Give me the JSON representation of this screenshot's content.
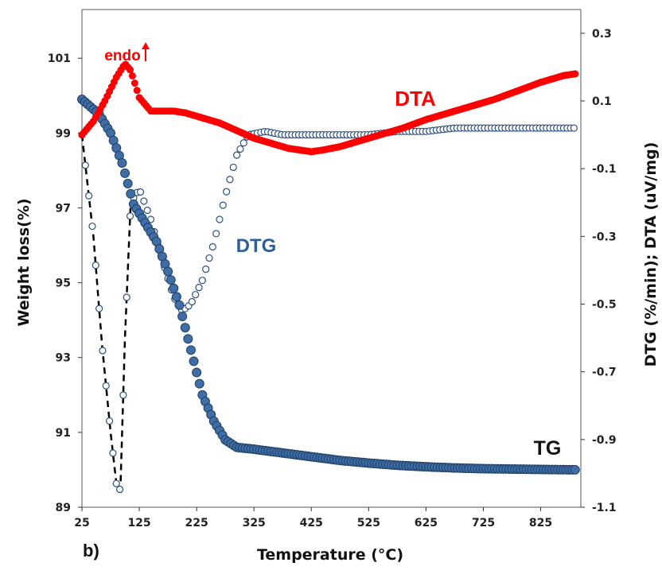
{
  "panel_label": "b)",
  "colors": {
    "dta": "#ff0000",
    "tg_fill": "#3f6ea6",
    "tg_edge": "#1f3f66",
    "dtg_edge": "#2a4f80",
    "dtg_dash": "#000000",
    "axis": "#333333"
  },
  "chart_data": {
    "type": "scatter",
    "title": "",
    "xlabel": "Temperature (°C)",
    "ylabel_left": "Weight loss(%)",
    "ylabel_right": "DTG (%/min); DTA (uV/mg)",
    "xlim": [
      25,
      895
    ],
    "ylim_left": [
      89,
      102.3
    ],
    "ylim_right": [
      -1.1,
      0.37
    ],
    "x_ticks": [
      "25",
      "125",
      "225",
      "325",
      "425",
      "525",
      "625",
      "725",
      "825"
    ],
    "y_left_ticks": [
      "89",
      "91",
      "93",
      "95",
      "97",
      "99",
      "101"
    ],
    "y_right_ticks": [
      "-1.1",
      "-0.9",
      "-0.7",
      "-0.5",
      "-0.3",
      "-0.1",
      "0.1",
      "0.3"
    ],
    "grid": false,
    "annotations": [
      "endo"
    ],
    "series": [
      {
        "name": "TG",
        "axis": "left",
        "marker": "filled-circle",
        "x": [
          25,
          55,
          75,
          95,
          115,
          135,
          155,
          175,
          195,
          215,
          235,
          255,
          275,
          295,
          325,
          375,
          425,
          475,
          525,
          575,
          625,
          675,
          725,
          775,
          825,
          885
        ],
        "y": [
          99.9,
          99.5,
          99.0,
          98.2,
          97.1,
          96.6,
          96.1,
          95.3,
          94.4,
          93.2,
          92.0,
          91.3,
          90.8,
          90.6,
          90.55,
          90.45,
          90.35,
          90.25,
          90.18,
          90.12,
          90.08,
          90.05,
          90.03,
          90.02,
          90.01,
          90.0
        ]
      },
      {
        "name": "DTG",
        "axis": "right",
        "marker": "open-circle",
        "x": [
          25,
          45,
          60,
          75,
          85,
          92,
          100,
          110,
          125,
          145,
          165,
          185,
          200,
          215,
          235,
          255,
          275,
          295,
          315,
          345,
          375,
          425,
          475,
          525,
          575,
          625,
          675,
          725,
          775,
          825,
          885
        ],
        "y": [
          0.0,
          -0.3,
          -0.62,
          -0.88,
          -1.03,
          -1.05,
          -0.6,
          -0.2,
          -0.16,
          -0.25,
          -0.37,
          -0.48,
          -0.52,
          -0.5,
          -0.43,
          -0.32,
          -0.18,
          -0.06,
          0.0,
          0.01,
          0.0,
          0.0,
          0.0,
          0.0,
          0.01,
          0.01,
          0.02,
          0.02,
          0.02,
          0.02,
          0.02
        ]
      },
      {
        "name": "DTA",
        "axis": "right",
        "marker": "filled-circle",
        "x": [
          25,
          45,
          65,
          85,
          100,
          110,
          125,
          145,
          165,
          185,
          205,
          225,
          245,
          265,
          285,
          305,
          325,
          345,
          365,
          385,
          405,
          425,
          445,
          475,
          505,
          545,
          585,
          625,
          665,
          705,
          745,
          785,
          825,
          865,
          885
        ],
        "y": [
          0.0,
          0.04,
          0.1,
          0.17,
          0.21,
          0.19,
          0.11,
          0.07,
          0.07,
          0.07,
          0.065,
          0.055,
          0.045,
          0.035,
          0.02,
          0.005,
          -0.01,
          -0.02,
          -0.03,
          -0.04,
          -0.045,
          -0.05,
          -0.045,
          -0.035,
          -0.02,
          0.0,
          0.02,
          0.045,
          0.065,
          0.085,
          0.105,
          0.13,
          0.155,
          0.175,
          0.18
        ]
      }
    ]
  }
}
